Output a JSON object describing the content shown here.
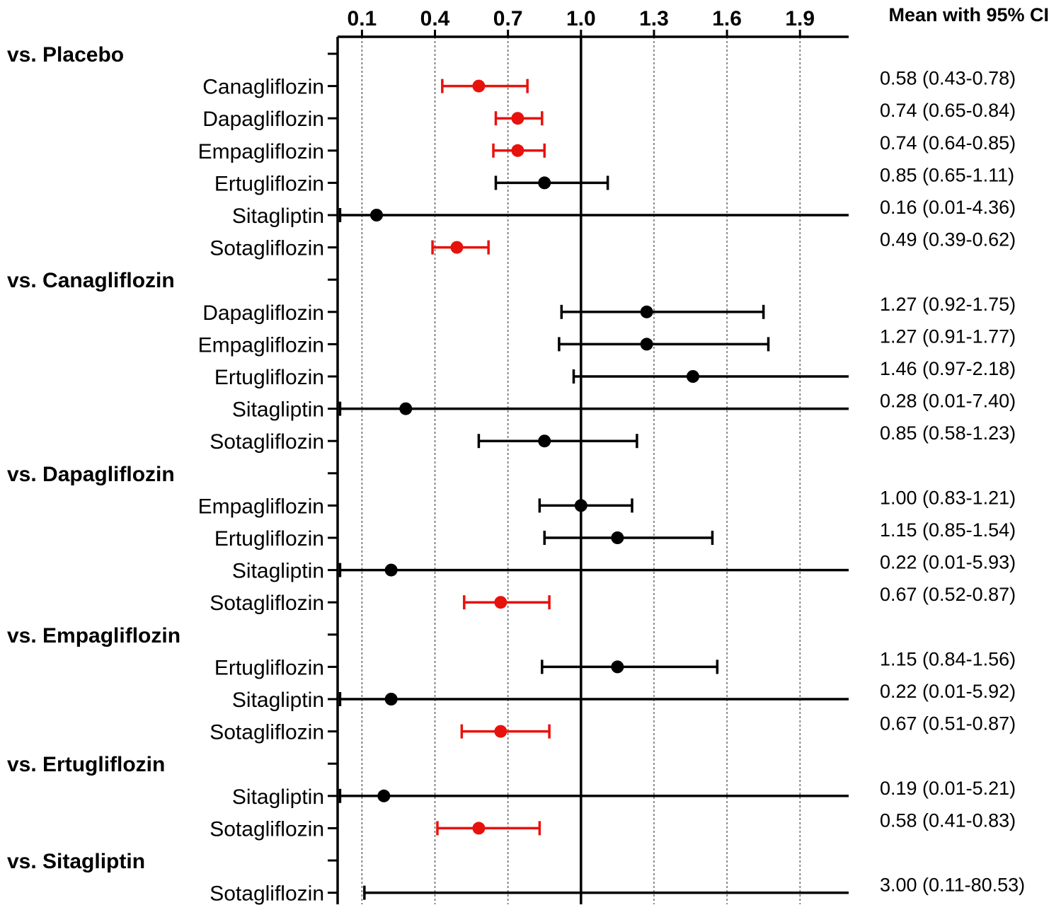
{
  "chart_data": {
    "type": "forest",
    "xlim": [
      0,
      2.1
    ],
    "x_ticks": [
      "0.1",
      "0.4",
      "0.7",
      "1.0",
      "1.3",
      "1.6",
      "1.9"
    ],
    "reference_line": 1.0,
    "ci_header": "Mean with 95% CI",
    "colors": {
      "significant": "#e8120c",
      "nonsignificant": "#000000"
    },
    "groups": [
      {
        "label": "vs. Placebo",
        "rows": [
          {
            "label": "Canagliflozin",
            "mean": 0.58,
            "lo": 0.43,
            "hi": 0.78,
            "text": "0.58 (0.43-0.78)",
            "significant": true
          },
          {
            "label": "Dapagliflozin",
            "mean": 0.74,
            "lo": 0.65,
            "hi": 0.84,
            "text": "0.74 (0.65-0.84)",
            "significant": true
          },
          {
            "label": "Empagliflozin",
            "mean": 0.74,
            "lo": 0.64,
            "hi": 0.85,
            "text": "0.74 (0.64-0.85)",
            "significant": true
          },
          {
            "label": "Ertugliflozin",
            "mean": 0.85,
            "lo": 0.65,
            "hi": 1.11,
            "text": "0.85 (0.65-1.11)",
            "significant": false
          },
          {
            "label": "Sitagliptin",
            "mean": 0.16,
            "lo": 0.01,
            "hi": 4.36,
            "text": "0.16 (0.01-4.36)",
            "significant": false
          },
          {
            "label": "Sotagliflozin",
            "mean": 0.49,
            "lo": 0.39,
            "hi": 0.62,
            "text": "0.49 (0.39-0.62)",
            "significant": true
          }
        ]
      },
      {
        "label": "vs. Canagliflozin",
        "rows": [
          {
            "label": "Dapagliflozin",
            "mean": 1.27,
            "lo": 0.92,
            "hi": 1.75,
            "text": "1.27 (0.92-1.75)",
            "significant": false
          },
          {
            "label": "Empagliflozin",
            "mean": 1.27,
            "lo": 0.91,
            "hi": 1.77,
            "text": "1.27 (0.91-1.77)",
            "significant": false
          },
          {
            "label": "Ertugliflozin",
            "mean": 1.46,
            "lo": 0.97,
            "hi": 2.18,
            "text": "1.46 (0.97-2.18)",
            "significant": false
          },
          {
            "label": "Sitagliptin",
            "mean": 0.28,
            "lo": 0.01,
            "hi": 7.4,
            "text": "0.28 (0.01-7.40)",
            "significant": false
          },
          {
            "label": "Sotagliflozin",
            "mean": 0.85,
            "lo": 0.58,
            "hi": 1.23,
            "text": "0.85 (0.58-1.23)",
            "significant": false
          }
        ]
      },
      {
        "label": "vs. Dapagliflozin",
        "rows": [
          {
            "label": "Empagliflozin",
            "mean": 1.0,
            "lo": 0.83,
            "hi": 1.21,
            "text": "1.00 (0.83-1.21)",
            "significant": false
          },
          {
            "label": "Ertugliflozin",
            "mean": 1.15,
            "lo": 0.85,
            "hi": 1.54,
            "text": "1.15 (0.85-1.54)",
            "significant": false
          },
          {
            "label": "Sitagliptin",
            "mean": 0.22,
            "lo": 0.01,
            "hi": 5.93,
            "text": "0.22 (0.01-5.93)",
            "significant": false
          },
          {
            "label": "Sotagliflozin",
            "mean": 0.67,
            "lo": 0.52,
            "hi": 0.87,
            "text": "0.67 (0.52-0.87)",
            "significant": true
          }
        ]
      },
      {
        "label": "vs. Empagliflozin",
        "rows": [
          {
            "label": "Ertugliflozin",
            "mean": 1.15,
            "lo": 0.84,
            "hi": 1.56,
            "text": "1.15 (0.84-1.56)",
            "significant": false
          },
          {
            "label": "Sitagliptin",
            "mean": 0.22,
            "lo": 0.01,
            "hi": 5.92,
            "text": "0.22 (0.01-5.92)",
            "significant": false
          },
          {
            "label": "Sotagliflozin",
            "mean": 0.67,
            "lo": 0.51,
            "hi": 0.87,
            "text": "0.67 (0.51-0.87)",
            "significant": true
          }
        ]
      },
      {
        "label": "vs. Ertugliflozin",
        "rows": [
          {
            "label": "Sitagliptin",
            "mean": 0.19,
            "lo": 0.01,
            "hi": 5.21,
            "text": "0.19 (0.01-5.21)",
            "significant": false
          },
          {
            "label": "Sotagliflozin",
            "mean": 0.58,
            "lo": 0.41,
            "hi": 0.83,
            "text": "0.58 (0.41-0.83)",
            "significant": true
          }
        ]
      },
      {
        "label": "vs. Sitagliptin",
        "rows": [
          {
            "label": "Sotagliflozin",
            "mean": 3.0,
            "lo": 0.11,
            "hi": 80.53,
            "text": "3.00 (0.11-80.53)",
            "significant": false
          }
        ]
      }
    ]
  }
}
